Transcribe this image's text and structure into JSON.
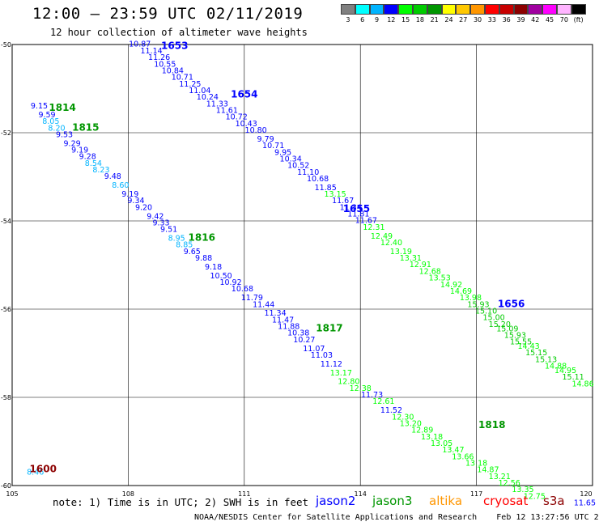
{
  "header": {
    "title": "12:00 – 23:59 UTC 02/11/2019",
    "subtitle": "12 hour collection of altimeter wave heights"
  },
  "color_scale": {
    "unit": "(ft)",
    "bins": [
      {
        "label": "3",
        "color": "#808080"
      },
      {
        "label": "6",
        "color": "#00ffff"
      },
      {
        "label": "9",
        "color": "#00b4ff"
      },
      {
        "label": "12",
        "color": "#0000ff"
      },
      {
        "label": "15",
        "color": "#00ff00"
      },
      {
        "label": "18",
        "color": "#00cc00"
      },
      {
        "label": "21",
        "color": "#009600"
      },
      {
        "label": "24",
        "color": "#ffff00"
      },
      {
        "label": "27",
        "color": "#ffc800"
      },
      {
        "label": "30",
        "color": "#ff9600"
      },
      {
        "label": "33",
        "color": "#ff0000"
      },
      {
        "label": "36",
        "color": "#c80000"
      },
      {
        "label": "39",
        "color": "#8c0000"
      },
      {
        "label": "42",
        "color": "#a000a0"
      },
      {
        "label": "45",
        "color": "#ff00ff"
      },
      {
        "label": "70",
        "color": "#ffb4ff"
      },
      {
        "label": "",
        "color": "#000000"
      }
    ]
  },
  "note": "note: 1) Time is in UTC; 2) SWH is in feet",
  "satellites": [
    {
      "name": "jason2",
      "color": "#0000ff"
    },
    {
      "name": "jason3",
      "color": "#009600"
    },
    {
      "name": "altika",
      "color": "#ff9600"
    },
    {
      "name": "cryosat",
      "color": "#ff0000"
    },
    {
      "name": "s3a",
      "color": "#8c0000"
    }
  ],
  "footer": "NOAA/NESDIS Center for Satellite Applications and Research    Feb 12 13:27:56 UTC 2019",
  "chart_data": {
    "type": "scatter",
    "x_ticks": [
      "105",
      "108",
      "111",
      "114",
      "117",
      "120"
    ],
    "y_ticks": [
      "-50",
      "-52",
      "-54",
      "-56",
      "-58",
      "-60"
    ],
    "xlim": [
      105,
      120
    ],
    "ylim": [
      -60,
      -50
    ],
    "grid": true,
    "tracks": [
      {
        "satellite": "jason2",
        "time_label": "1653",
        "label_color": "#0000ff",
        "lon": 109.2,
        "lat": -50.1
      },
      {
        "satellite": "jason2",
        "time_label": "1654",
        "label_color": "#0000ff",
        "lon": 111.0,
        "lat": -51.2
      },
      {
        "satellite": "jason2",
        "time_label": "1655",
        "label_color": "#0000ff",
        "lon": 113.9,
        "lat": -53.8
      },
      {
        "satellite": "jason2",
        "time_label": "1656",
        "label_color": "#0000ff",
        "lon": 117.9,
        "lat": -55.95
      },
      {
        "satellite": "jason3",
        "time_label": "1814",
        "label_color": "#009600",
        "lon": 106.3,
        "lat": -51.5
      },
      {
        "satellite": "jason3",
        "time_label": "1815",
        "label_color": "#009600",
        "lon": 106.9,
        "lat": -51.95
      },
      {
        "satellite": "jason3",
        "time_label": "1816",
        "label_color": "#009600",
        "lon": 109.9,
        "lat": -54.45
      },
      {
        "satellite": "jason3",
        "time_label": "1817",
        "label_color": "#009600",
        "lon": 113.2,
        "lat": -56.5
      },
      {
        "satellite": "jason3",
        "time_label": "1818",
        "label_color": "#009600",
        "lon": 117.4,
        "lat": -58.7
      },
      {
        "satellite": "s3a",
        "time_label": "1600",
        "label_color": "#8c0000",
        "lon": 105.8,
        "lat": -59.7
      }
    ],
    "points": [
      {
        "lon": 105.7,
        "lat": -51.45,
        "v": "9.15",
        "c": "#0000ff"
      },
      {
        "lon": 105.9,
        "lat": -51.65,
        "v": "9.59",
        "c": "#0000ff"
      },
      {
        "lon": 106.0,
        "lat": -51.8,
        "v": "8.05",
        "c": "#00b4ff"
      },
      {
        "lon": 106.15,
        "lat": -51.95,
        "v": "8.20",
        "c": "#00b4ff"
      },
      {
        "lon": 106.35,
        "lat": -52.1,
        "v": "9.53",
        "c": "#0000ff"
      },
      {
        "lon": 106.55,
        "lat": -52.3,
        "v": "9.29",
        "c": "#0000ff"
      },
      {
        "lon": 106.75,
        "lat": -52.45,
        "v": "9.19",
        "c": "#0000ff"
      },
      {
        "lon": 106.95,
        "lat": -52.6,
        "v": "9.28",
        "c": "#0000ff"
      },
      {
        "lon": 107.1,
        "lat": -52.75,
        "v": "8.54",
        "c": "#00b4ff"
      },
      {
        "lon": 107.3,
        "lat": -52.9,
        "v": "8.23",
        "c": "#00b4ff"
      },
      {
        "lon": 107.6,
        "lat": -53.05,
        "v": "9.48",
        "c": "#0000ff"
      },
      {
        "lon": 107.8,
        "lat": -53.25,
        "v": "8.60",
        "c": "#00b4ff"
      },
      {
        "lon": 108.05,
        "lat": -53.45,
        "v": "9.19",
        "c": "#0000ff"
      },
      {
        "lon": 108.2,
        "lat": -53.6,
        "v": "9.34",
        "c": "#0000ff"
      },
      {
        "lon": 108.4,
        "lat": -53.75,
        "v": "9.20",
        "c": "#0000ff"
      },
      {
        "lon": 108.7,
        "lat": -53.95,
        "v": "9.42",
        "c": "#0000ff"
      },
      {
        "lon": 108.85,
        "lat": -54.1,
        "v": "9.33",
        "c": "#0000ff"
      },
      {
        "lon": 109.05,
        "lat": -54.25,
        "v": "9.51",
        "c": "#0000ff"
      },
      {
        "lon": 109.25,
        "lat": -54.45,
        "v": "8.95",
        "c": "#00b4ff"
      },
      {
        "lon": 109.45,
        "lat": -54.6,
        "v": "8.85",
        "c": "#00b4ff"
      },
      {
        "lon": 109.65,
        "lat": -54.75,
        "v": "9.65",
        "c": "#0000ff"
      },
      {
        "lon": 109.95,
        "lat": -54.9,
        "v": "9.88",
        "c": "#0000ff"
      },
      {
        "lon": 110.2,
        "lat": -55.1,
        "v": "9.18",
        "c": "#0000ff"
      },
      {
        "lon": 110.4,
        "lat": -55.3,
        "v": "10.50",
        "c": "#0000ff"
      },
      {
        "lon": 110.65,
        "lat": -55.45,
        "v": "10.92",
        "c": "#0000ff"
      },
      {
        "lon": 110.95,
        "lat": -55.6,
        "v": "10.68",
        "c": "#0000ff"
      },
      {
        "lon": 111.2,
        "lat": -55.8,
        "v": "11.79",
        "c": "#0000ff"
      },
      {
        "lon": 111.5,
        "lat": -55.95,
        "v": "11.44",
        "c": "#0000ff"
      },
      {
        "lon": 111.8,
        "lat": -56.15,
        "v": "11.34",
        "c": "#0000ff"
      },
      {
        "lon": 112.0,
        "lat": -56.3,
        "v": "11.47",
        "c": "#0000ff"
      },
      {
        "lon": 112.15,
        "lat": -56.45,
        "v": "11.88",
        "c": "#0000ff"
      },
      {
        "lon": 112.4,
        "lat": -56.6,
        "v": "10.38",
        "c": "#0000ff"
      },
      {
        "lon": 112.55,
        "lat": -56.75,
        "v": "10.27",
        "c": "#0000ff"
      },
      {
        "lon": 112.8,
        "lat": -56.95,
        "v": "11.07",
        "c": "#0000ff"
      },
      {
        "lon": 113.0,
        "lat": -57.1,
        "v": "11.03",
        "c": "#0000ff"
      },
      {
        "lon": 113.25,
        "lat": -57.3,
        "v": "11.12",
        "c": "#0000ff"
      },
      {
        "lon": 113.5,
        "lat": -57.5,
        "v": "13.17",
        "c": "#00ff00"
      },
      {
        "lon": 113.7,
        "lat": -57.7,
        "v": "12.80",
        "c": "#00ff00"
      },
      {
        "lon": 114.0,
        "lat": -57.85,
        "v": "12.38",
        "c": "#00ff00"
      },
      {
        "lon": 114.3,
        "lat": -58.0,
        "v": "11.73",
        "c": "#0000ff"
      },
      {
        "lon": 114.6,
        "lat": -58.15,
        "v": "12.61",
        "c": "#00ff00"
      },
      {
        "lon": 114.8,
        "lat": -58.35,
        "v": "11.52",
        "c": "#0000ff"
      },
      {
        "lon": 115.1,
        "lat": -58.5,
        "v": "12.30",
        "c": "#00ff00"
      },
      {
        "lon": 115.3,
        "lat": -58.65,
        "v": "13.20",
        "c": "#00ff00"
      },
      {
        "lon": 115.6,
        "lat": -58.8,
        "v": "12.89",
        "c": "#00ff00"
      },
      {
        "lon": 115.85,
        "lat": -58.95,
        "v": "13.18",
        "c": "#00ff00"
      },
      {
        "lon": 116.1,
        "lat": -59.1,
        "v": "13.05",
        "c": "#00ff00"
      },
      {
        "lon": 116.4,
        "lat": -59.25,
        "v": "13.47",
        "c": "#00ff00"
      },
      {
        "lon": 116.65,
        "lat": -59.4,
        "v": "13.66",
        "c": "#00ff00"
      },
      {
        "lon": 117.0,
        "lat": -59.55,
        "v": "13.18",
        "c": "#00ff00"
      },
      {
        "lon": 117.3,
        "lat": -59.7,
        "v": "14.87",
        "c": "#00ff00"
      },
      {
        "lon": 117.6,
        "lat": -59.85,
        "v": "13.21",
        "c": "#00ff00"
      },
      {
        "lon": 117.85,
        "lat": -60.0,
        "v": "12.56",
        "c": "#00ff00"
      },
      {
        "lon": 118.2,
        "lat": -60.15,
        "v": "13.35",
        "c": "#00ff00"
      },
      {
        "lon": 118.5,
        "lat": -60.3,
        "v": "12.75",
        "c": "#00ff00"
      },
      {
        "lon": 119.8,
        "lat": -60.45,
        "v": "11.65",
        "c": "#0000ff"
      },
      {
        "lon": 105.6,
        "lat": -59.75,
        "v": "8.46",
        "c": "#00b4ff"
      },
      {
        "lon": 108.3,
        "lat": -50.05,
        "v": "10.87",
        "c": "#0000ff"
      },
      {
        "lon": 108.6,
        "lat": -50.2,
        "v": "11.14",
        "c": "#0000ff"
      },
      {
        "lon": 108.8,
        "lat": -50.35,
        "v": "11.26",
        "c": "#0000ff"
      },
      {
        "lon": 108.95,
        "lat": -50.5,
        "v": "10.55",
        "c": "#0000ff"
      },
      {
        "lon": 109.15,
        "lat": -50.65,
        "v": "10.84",
        "c": "#0000ff"
      },
      {
        "lon": 109.4,
        "lat": -50.8,
        "v": "10.71",
        "c": "#0000ff"
      },
      {
        "lon": 109.6,
        "lat": -50.95,
        "v": "11.25",
        "c": "#0000ff"
      },
      {
        "lon": 109.85,
        "lat": -51.1,
        "v": "11.04",
        "c": "#0000ff"
      },
      {
        "lon": 110.05,
        "lat": -51.25,
        "v": "10.24",
        "c": "#0000ff"
      },
      {
        "lon": 110.3,
        "lat": -51.4,
        "v": "11.33",
        "c": "#0000ff"
      },
      {
        "lon": 110.55,
        "lat": -51.55,
        "v": "11.61",
        "c": "#0000ff"
      },
      {
        "lon": 110.8,
        "lat": -51.7,
        "v": "10.72",
        "c": "#0000ff"
      },
      {
        "lon": 111.05,
        "lat": -51.85,
        "v": "10.43",
        "c": "#0000ff"
      },
      {
        "lon": 111.3,
        "lat": -52.0,
        "v": "10.80",
        "c": "#0000ff"
      },
      {
        "lon": 111.55,
        "lat": -52.2,
        "v": "9.79",
        "c": "#0000ff"
      },
      {
        "lon": 111.75,
        "lat": -52.35,
        "v": "10.71",
        "c": "#0000ff"
      },
      {
        "lon": 112.0,
        "lat": -52.5,
        "v": "9.95",
        "c": "#0000ff"
      },
      {
        "lon": 112.2,
        "lat": -52.65,
        "v": "10.34",
        "c": "#0000ff"
      },
      {
        "lon": 112.4,
        "lat": -52.8,
        "v": "10.52",
        "c": "#0000ff"
      },
      {
        "lon": 112.65,
        "lat": -52.95,
        "v": "11.10",
        "c": "#0000ff"
      },
      {
        "lon": 112.9,
        "lat": -53.1,
        "v": "10.68",
        "c": "#0000ff"
      },
      {
        "lon": 113.1,
        "lat": -53.3,
        "v": "11.85",
        "c": "#0000ff"
      },
      {
        "lon": 113.35,
        "lat": -53.45,
        "v": "13.15",
        "c": "#00ff00"
      },
      {
        "lon": 113.55,
        "lat": -53.6,
        "v": "11.67",
        "c": "#0000ff"
      },
      {
        "lon": 113.75,
        "lat": -53.75,
        "v": "11.34",
        "c": "#0000ff"
      },
      {
        "lon": 113.95,
        "lat": -53.9,
        "v": "11.81",
        "c": "#0000ff"
      },
      {
        "lon": 114.15,
        "lat": -54.05,
        "v": "11.67",
        "c": "#0000ff"
      },
      {
        "lon": 114.35,
        "lat": -54.2,
        "v": "12.31",
        "c": "#00ff00"
      },
      {
        "lon": 114.55,
        "lat": -54.4,
        "v": "12.49",
        "c": "#00ff00"
      },
      {
        "lon": 114.8,
        "lat": -54.55,
        "v": "12.40",
        "c": "#00ff00"
      },
      {
        "lon": 115.05,
        "lat": -54.75,
        "v": "13.19",
        "c": "#00ff00"
      },
      {
        "lon": 115.3,
        "lat": -54.9,
        "v": "13.31",
        "c": "#00ff00"
      },
      {
        "lon": 115.55,
        "lat": -55.05,
        "v": "12.91",
        "c": "#00ff00"
      },
      {
        "lon": 115.8,
        "lat": -55.2,
        "v": "12.68",
        "c": "#00ff00"
      },
      {
        "lon": 116.05,
        "lat": -55.35,
        "v": "13.53",
        "c": "#00ff00"
      },
      {
        "lon": 116.35,
        "lat": -55.5,
        "v": "14.92",
        "c": "#00ff00"
      },
      {
        "lon": 116.6,
        "lat": -55.65,
        "v": "14.69",
        "c": "#00ff00"
      },
      {
        "lon": 116.85,
        "lat": -55.8,
        "v": "13.98",
        "c": "#00ff00"
      },
      {
        "lon": 117.05,
        "lat": -55.95,
        "v": "15.93",
        "c": "#00cc00"
      },
      {
        "lon": 117.25,
        "lat": -56.1,
        "v": "15.10",
        "c": "#00cc00"
      },
      {
        "lon": 117.45,
        "lat": -56.25,
        "v": "15.00",
        "c": "#00cc00"
      },
      {
        "lon": 117.6,
        "lat": -56.4,
        "v": "15.20",
        "c": "#00cc00"
      },
      {
        "lon": 117.8,
        "lat": -56.5,
        "v": "15.09",
        "c": "#00cc00"
      },
      {
        "lon": 118.0,
        "lat": -56.65,
        "v": "15.93",
        "c": "#00cc00"
      },
      {
        "lon": 118.15,
        "lat": -56.8,
        "v": "15.55",
        "c": "#00cc00"
      },
      {
        "lon": 118.35,
        "lat": -56.9,
        "v": "14.43",
        "c": "#00ff00"
      },
      {
        "lon": 118.55,
        "lat": -57.05,
        "v": "15.15",
        "c": "#00cc00"
      },
      {
        "lon": 118.8,
        "lat": -57.2,
        "v": "15.13",
        "c": "#00cc00"
      },
      {
        "lon": 119.05,
        "lat": -57.35,
        "v": "14.88",
        "c": "#00ff00"
      },
      {
        "lon": 119.3,
        "lat": -57.45,
        "v": "14.95",
        "c": "#00ff00"
      },
      {
        "lon": 119.5,
        "lat": -57.6,
        "v": "15.11",
        "c": "#00cc00"
      },
      {
        "lon": 119.75,
        "lat": -57.75,
        "v": "14.86",
        "c": "#00ff00"
      }
    ]
  }
}
